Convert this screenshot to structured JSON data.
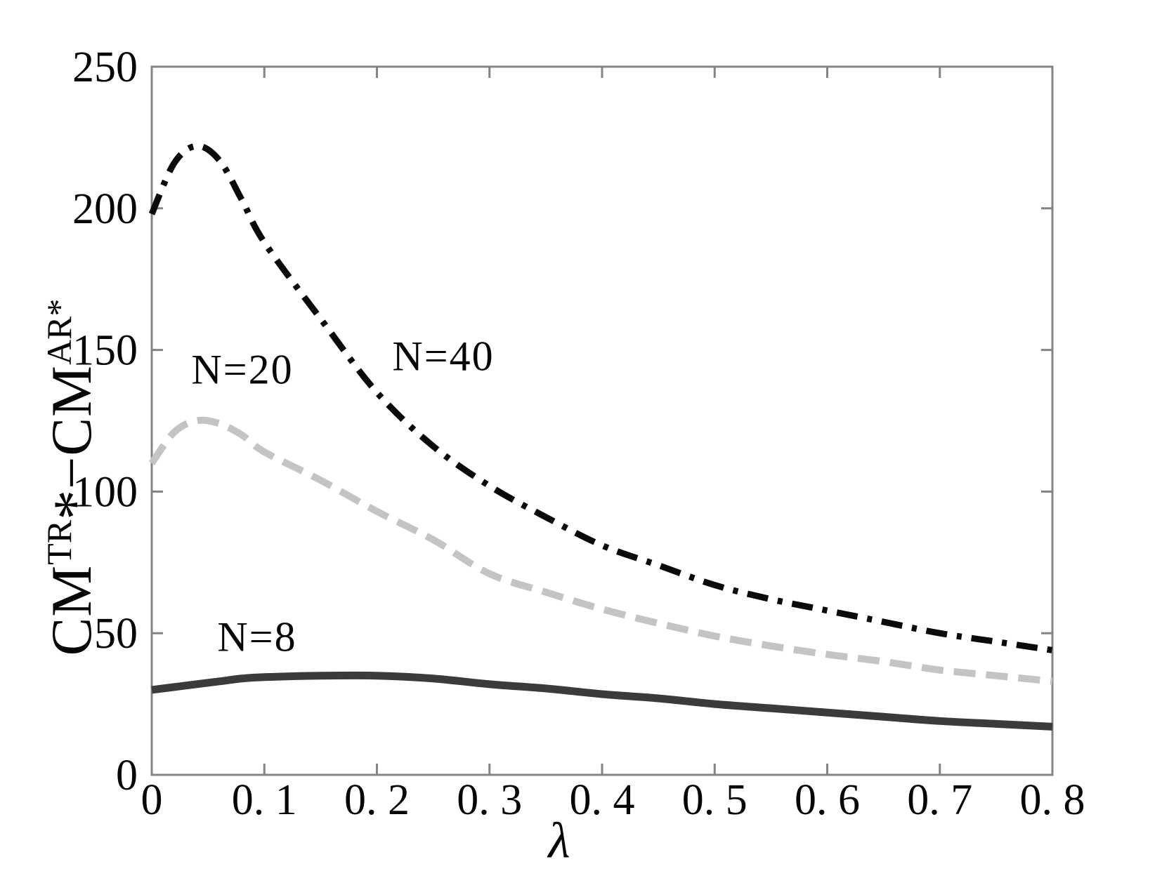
{
  "figure": {
    "background": "#ffffff",
    "text_color": "#060606"
  },
  "chart_data": {
    "type": "line",
    "title": "",
    "xlabel": "λ",
    "ylabel": "CM^TR* − CM^AR*",
    "ylabel_parts": {
      "cm1": "CM",
      "sup1": "TR",
      "star": "*",
      "minus": "−",
      "cm2": "CM",
      "sup2": "AR*"
    },
    "xlim": [
      0,
      0.8
    ],
    "ylim": [
      0,
      250
    ],
    "grid": false,
    "legend": "inline-annotations",
    "axis_color": "#848484",
    "x_ticks": [
      0,
      0.1,
      0.2,
      0.3,
      0.4,
      0.5,
      0.6,
      0.7,
      0.8
    ],
    "x_tick_labels": [
      "0",
      "0. 1",
      "0. 2",
      "0. 3",
      "0. 4",
      "0. 5",
      "0. 6",
      "0. 7",
      "0. 8"
    ],
    "y_ticks": [
      0,
      50,
      100,
      150,
      200,
      250
    ],
    "y_tick_labels": [
      "0",
      "50",
      "100",
      "150",
      "200",
      "250"
    ],
    "x": [
      0,
      0.02,
      0.04,
      0.06,
      0.08,
      0.1,
      0.15,
      0.2,
      0.25,
      0.3,
      0.35,
      0.4,
      0.45,
      0.5,
      0.55,
      0.6,
      0.65,
      0.7,
      0.75,
      0.8
    ],
    "series": [
      {
        "name": "N=40",
        "style": "dashdot",
        "color": "#0a0a0a",
        "width": 9,
        "values": [
          198,
          216,
          222,
          217,
          203,
          188,
          161,
          135,
          116,
          102,
          91,
          81,
          74,
          67,
          62,
          58,
          54,
          50,
          47,
          44
        ]
      },
      {
        "name": "N=20",
        "style": "dashed",
        "color": "#c3c4c3",
        "width": 10,
        "values": [
          110,
          121,
          125,
          124,
          120,
          114,
          104,
          93,
          83,
          71,
          64.5,
          58.5,
          53.5,
          49,
          45.5,
          42.5,
          40,
          37,
          35,
          33
        ]
      },
      {
        "name": "N=8",
        "style": "solid",
        "color": "#3b3b3e",
        "width": 11,
        "values": [
          30,
          31,
          32,
          33,
          34,
          34.5,
          35,
          35,
          34,
          32,
          30.5,
          28.5,
          27,
          25,
          23.5,
          22,
          20.5,
          19,
          18,
          17
        ]
      }
    ],
    "annotations": [
      {
        "text": "N=20",
        "series": "N=20"
      },
      {
        "text": "N=40",
        "series": "N=40"
      },
      {
        "text": "N=8",
        "series": "N=8"
      }
    ]
  }
}
